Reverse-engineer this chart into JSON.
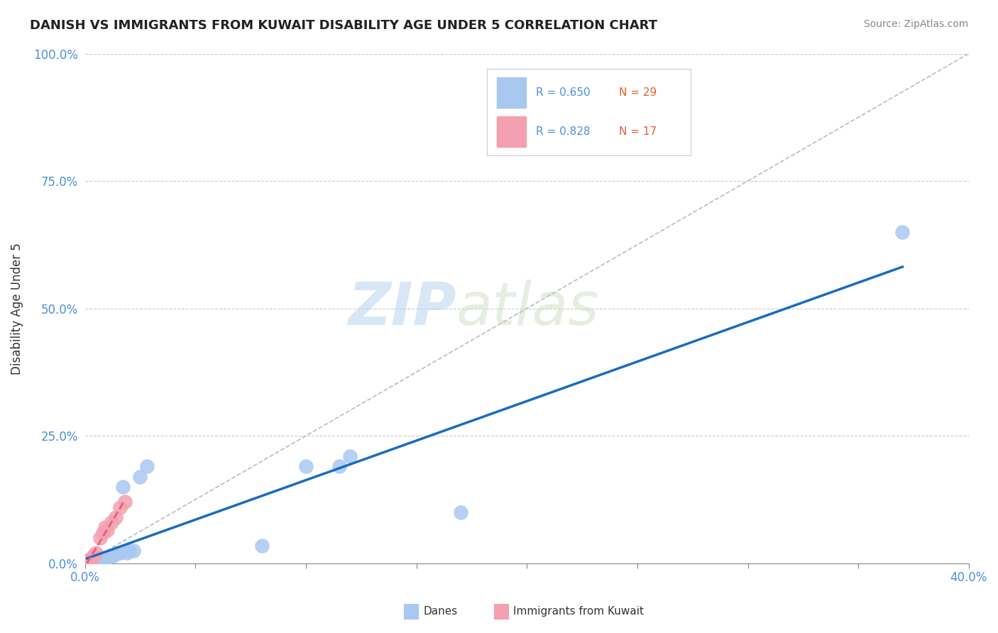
{
  "title": "DANISH VS IMMIGRANTS FROM KUWAIT DISABILITY AGE UNDER 5 CORRELATION CHART",
  "source": "Source: ZipAtlas.com",
  "xlabel": "",
  "ylabel": "Disability Age Under 5",
  "xlim": [
    0.0,
    0.4
  ],
  "ylim": [
    0.0,
    1.0
  ],
  "xticks": [
    0.0,
    0.05,
    0.1,
    0.15,
    0.2,
    0.25,
    0.3,
    0.35,
    0.4
  ],
  "yticks": [
    0.0,
    0.25,
    0.5,
    0.75,
    1.0
  ],
  "yticklabels": [
    "0.0%",
    "25.0%",
    "50.0%",
    "75.0%",
    "100.0%"
  ],
  "legend_R1": "R = 0.650",
  "legend_N1": "N = 29",
  "legend_R2": "R = 0.828",
  "legend_N2": "N = 17",
  "danes_color": "#a8c8f0",
  "kuwait_color": "#f4a0b0",
  "danes_line_color": "#1a6bbf",
  "kuwait_line_color": "#e06080",
  "danes_x": [
    0.001,
    0.002,
    0.002,
    0.003,
    0.003,
    0.004,
    0.004,
    0.005,
    0.005,
    0.006,
    0.007,
    0.008,
    0.01,
    0.012,
    0.013,
    0.015,
    0.016,
    0.017,
    0.019,
    0.02,
    0.022,
    0.025,
    0.028,
    0.08,
    0.1,
    0.115,
    0.12,
    0.17,
    0.37
  ],
  "danes_y": [
    0.005,
    0.005,
    0.005,
    0.005,
    0.005,
    0.005,
    0.005,
    0.005,
    0.005,
    0.005,
    0.005,
    0.005,
    0.01,
    0.015,
    0.015,
    0.02,
    0.02,
    0.15,
    0.02,
    0.025,
    0.025,
    0.17,
    0.19,
    0.035,
    0.19,
    0.19,
    0.21,
    0.1,
    0.65
  ],
  "kuwait_x": [
    0.001,
    0.001,
    0.001,
    0.002,
    0.002,
    0.003,
    0.003,
    0.004,
    0.005,
    0.007,
    0.008,
    0.009,
    0.01,
    0.012,
    0.014,
    0.016,
    0.018
  ],
  "kuwait_y": [
    0.005,
    0.005,
    0.005,
    0.005,
    0.005,
    0.008,
    0.01,
    0.015,
    0.02,
    0.05,
    0.06,
    0.07,
    0.065,
    0.08,
    0.09,
    0.11,
    0.12
  ],
  "watermark_zip": "ZIP",
  "watermark_atlas": "atlas",
  "background_color": "#ffffff",
  "grid_color": "#cccccc"
}
